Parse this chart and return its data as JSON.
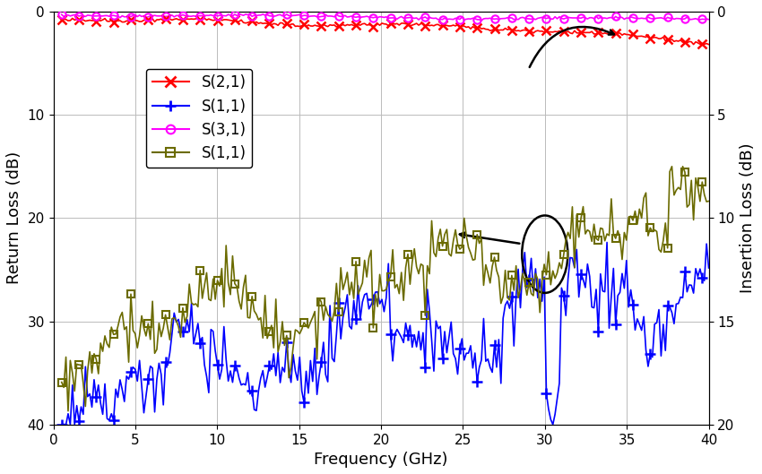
{
  "xlabel": "Frequency (GHz)",
  "ylabel_left": "Return Loss (dB)",
  "ylabel_right": "Insertion Loss (dB)",
  "xlim": [
    0,
    40
  ],
  "ylim_left": [
    40,
    0
  ],
  "ylim_right": [
    20,
    0
  ],
  "yticks_left": [
    0,
    10,
    20,
    30,
    40
  ],
  "yticks_right": [
    0,
    5,
    10,
    15,
    20
  ],
  "xticks": [
    0,
    5,
    10,
    15,
    20,
    25,
    30,
    35,
    40
  ],
  "color_s21": "#ff0000",
  "color_s11_rl": "#0000ff",
  "color_s31": "#ff00ff",
  "color_s11_il": "#6b6b00",
  "background_color": "#ffffff",
  "legend_labels": [
    "S(2,1)",
    "S(1,1)",
    "S(3,1)",
    "S(1,1)"
  ]
}
